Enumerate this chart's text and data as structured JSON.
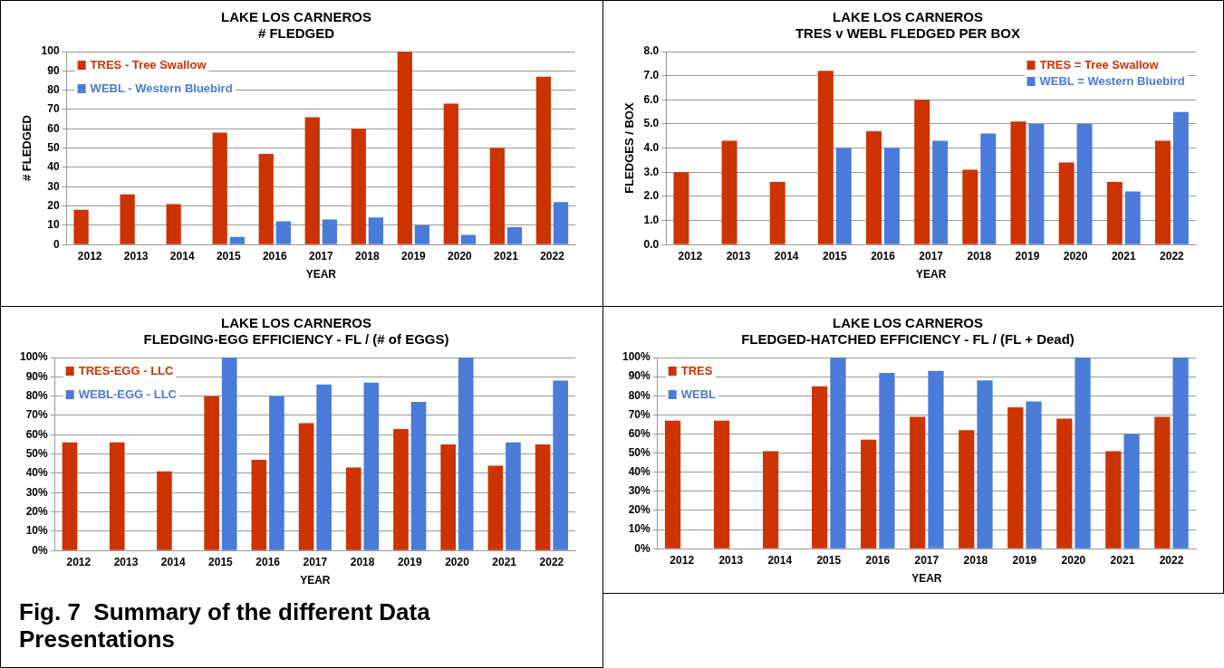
{
  "chart_data": [
    {
      "type": "bar",
      "title": "LAKE LOS CARNEROS",
      "subtitle": "# FLEDGED",
      "xlabel": "YEAR",
      "ylabel": "# FLEDGED",
      "categories": [
        "2012",
        "2013",
        "2014",
        "2015",
        "2016",
        "2017",
        "2018",
        "2019",
        "2020",
        "2021",
        "2022"
      ],
      "series": [
        {
          "name": "TRES - Tree Swallow",
          "color": "#cc3300",
          "values": [
            18,
            26,
            21,
            58,
            47,
            66,
            60,
            100,
            73,
            50,
            87
          ]
        },
        {
          "name": "WEBL - Western Bluebird",
          "color": "#4a7bd8",
          "values": [
            0,
            0,
            0,
            4,
            12,
            13,
            14,
            10,
            5,
            9,
            22
          ]
        }
      ],
      "ylim": [
        0,
        100
      ],
      "yticks": [
        0,
        10,
        20,
        30,
        40,
        50,
        60,
        70,
        80,
        90,
        100
      ],
      "grid": "y",
      "legend": "top left"
    },
    {
      "type": "bar",
      "title": "LAKE LOS CARNEROS",
      "subtitle": "TRES v WEBL FLEDGED PER BOX",
      "xlabel": "YEAR",
      "ylabel": "FLEDGES / BOX",
      "categories": [
        "2012",
        "2013",
        "2014",
        "2015",
        "2016",
        "2017",
        "2018",
        "2019",
        "2020",
        "2021",
        "2022"
      ],
      "series": [
        {
          "name": "TRES = Tree Swallow",
          "color": "#cc3300",
          "values": [
            3.0,
            4.3,
            2.6,
            7.2,
            4.7,
            6.0,
            3.1,
            5.1,
            3.4,
            2.6,
            4.3
          ]
        },
        {
          "name": "WEBL = Western Bluebird",
          "color": "#4a7bd8",
          "values": [
            0,
            0,
            0,
            4.0,
            4.0,
            4.3,
            4.6,
            5.0,
            5.0,
            2.2,
            5.5
          ]
        }
      ],
      "ylim": [
        0,
        8
      ],
      "yticks": [
        {
          "value": 0,
          "label": "0.0"
        },
        {
          "value": 1,
          "label": "1.0"
        },
        {
          "value": 2,
          "label": "2.0"
        },
        {
          "value": 3,
          "label": "3.0"
        },
        {
          "value": 4,
          "label": "4.0"
        },
        {
          "value": 5,
          "label": "5.0"
        },
        {
          "value": 6,
          "label": "6.0"
        },
        {
          "value": 7,
          "label": "7.0"
        },
        {
          "value": 8,
          "label": "8.0"
        }
      ],
      "grid": "y",
      "legend": "top right"
    },
    {
      "type": "bar",
      "title": "LAKE LOS CARNEROS",
      "subtitle": "FLEDGING-EGG EFFICIENCY - FL / (# of EGGS)",
      "xlabel": "YEAR",
      "categories": [
        "2012",
        "2013",
        "2014",
        "2015",
        "2016",
        "2017",
        "2018",
        "2019",
        "2020",
        "2021",
        "2022"
      ],
      "series": [
        {
          "name": "TRES-EGG - LLC",
          "color": "#cc3300",
          "values": [
            56,
            56,
            41,
            80,
            47,
            66,
            43,
            63,
            55,
            44,
            55
          ]
        },
        {
          "name": "WEBL-EGG - LLC",
          "color": "#4a7bd8",
          "values": [
            0,
            0,
            0,
            100,
            80,
            86,
            87,
            77,
            100,
            56,
            88
          ]
        }
      ],
      "ylim": [
        0,
        100
      ],
      "yticks": [
        {
          "value": 0,
          "label": "0%"
        },
        {
          "value": 10,
          "label": "10%"
        },
        {
          "value": 20,
          "label": "20%"
        },
        {
          "value": 30,
          "label": "30%"
        },
        {
          "value": 40,
          "label": "40%"
        },
        {
          "value": 50,
          "label": "50%"
        },
        {
          "value": 60,
          "label": "60%"
        },
        {
          "value": 70,
          "label": "70%"
        },
        {
          "value": 80,
          "label": "80%"
        },
        {
          "value": 90,
          "label": "90%"
        },
        {
          "value": 100,
          "label": "100%"
        }
      ],
      "grid": "y",
      "legend": "top left",
      "annotations": [
        "Fig. 7  Summary of the different Data Presentations"
      ]
    },
    {
      "type": "bar",
      "title": "LAKE LOS CARNEROS",
      "subtitle": "FLEDGED-HATCHED EFFICIENCY - FL / (FL + Dead)",
      "xlabel": "YEAR",
      "categories": [
        "2012",
        "2013",
        "2014",
        "2015",
        "2016",
        "2017",
        "2018",
        "2019",
        "2020",
        "2021",
        "2022"
      ],
      "series": [
        {
          "name": "TRES",
          "color": "#cc3300",
          "values": [
            67,
            67,
            51,
            85,
            57,
            69,
            62,
            74,
            68,
            51,
            69
          ]
        },
        {
          "name": "WEBL",
          "color": "#4a7bd8",
          "values": [
            0,
            0,
            0,
            100,
            92,
            93,
            88,
            77,
            100,
            60,
            100
          ]
        }
      ],
      "ylim": [
        0,
        100
      ],
      "yticks": [
        {
          "value": 0,
          "label": "0%"
        },
        {
          "value": 10,
          "label": "10%"
        },
        {
          "value": 20,
          "label": "20%"
        },
        {
          "value": 30,
          "label": "30%"
        },
        {
          "value": 40,
          "label": "40%"
        },
        {
          "value": 50,
          "label": "50%"
        },
        {
          "value": 60,
          "label": "60%"
        },
        {
          "value": 70,
          "label": "70%"
        },
        {
          "value": 80,
          "label": "80%"
        },
        {
          "value": 90,
          "label": "90%"
        },
        {
          "value": 100,
          "label": "100%"
        }
      ],
      "grid": "y",
      "legend": "top left"
    }
  ]
}
